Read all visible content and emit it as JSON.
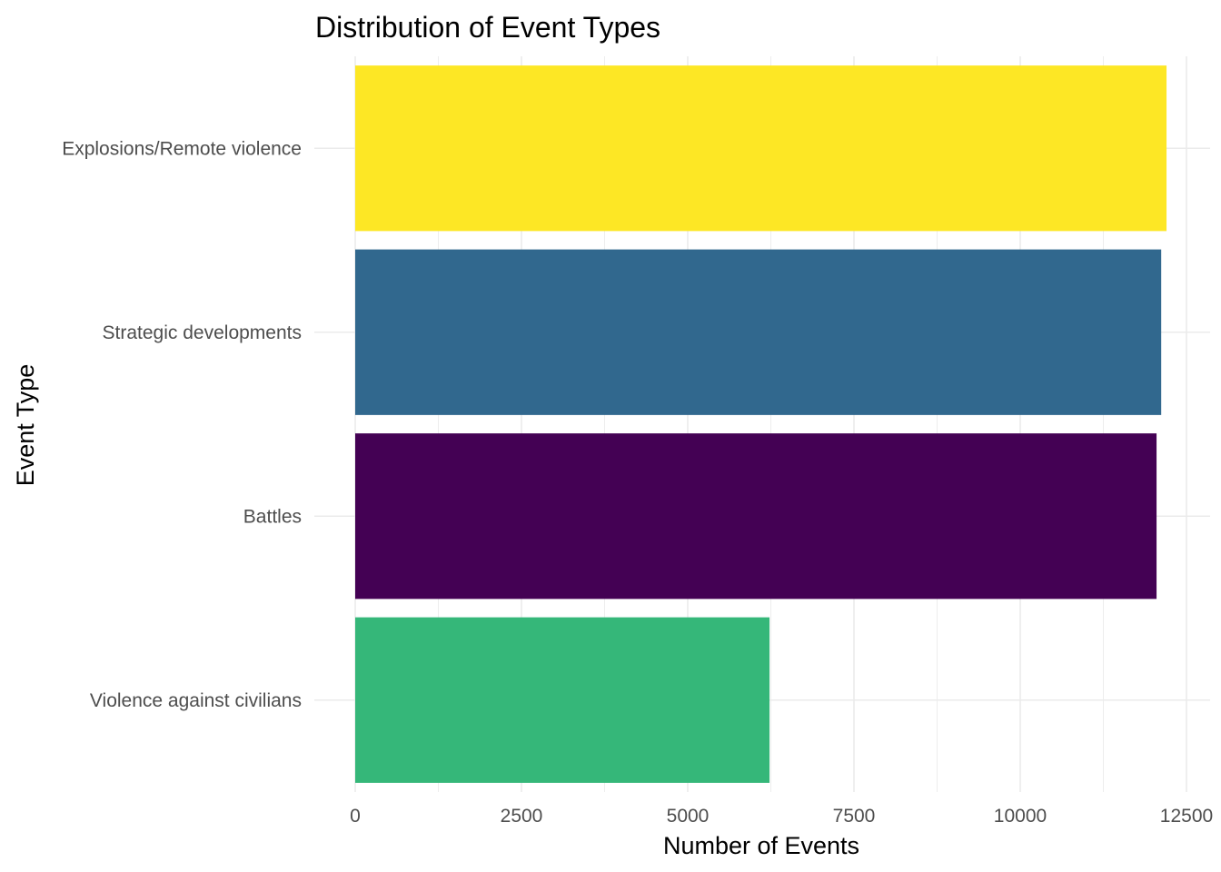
{
  "chart_data": {
    "type": "bar",
    "orientation": "horizontal",
    "title": "Distribution of Event Types",
    "xlabel": "Number of Events",
    "ylabel": "Event Type",
    "categories": [
      "Explosions/Remote violence",
      "Strategic developments",
      "Battles",
      "Violence against civilians"
    ],
    "values": [
      12200,
      12120,
      12050,
      6230
    ],
    "colors": [
      "#FDE725",
      "#31688E",
      "#440154",
      "#35B779"
    ],
    "xlim": [
      0,
      12500
    ],
    "x_ticks": [
      0,
      2500,
      5000,
      7500,
      10000,
      12500
    ],
    "grid": true,
    "legend": "none"
  }
}
